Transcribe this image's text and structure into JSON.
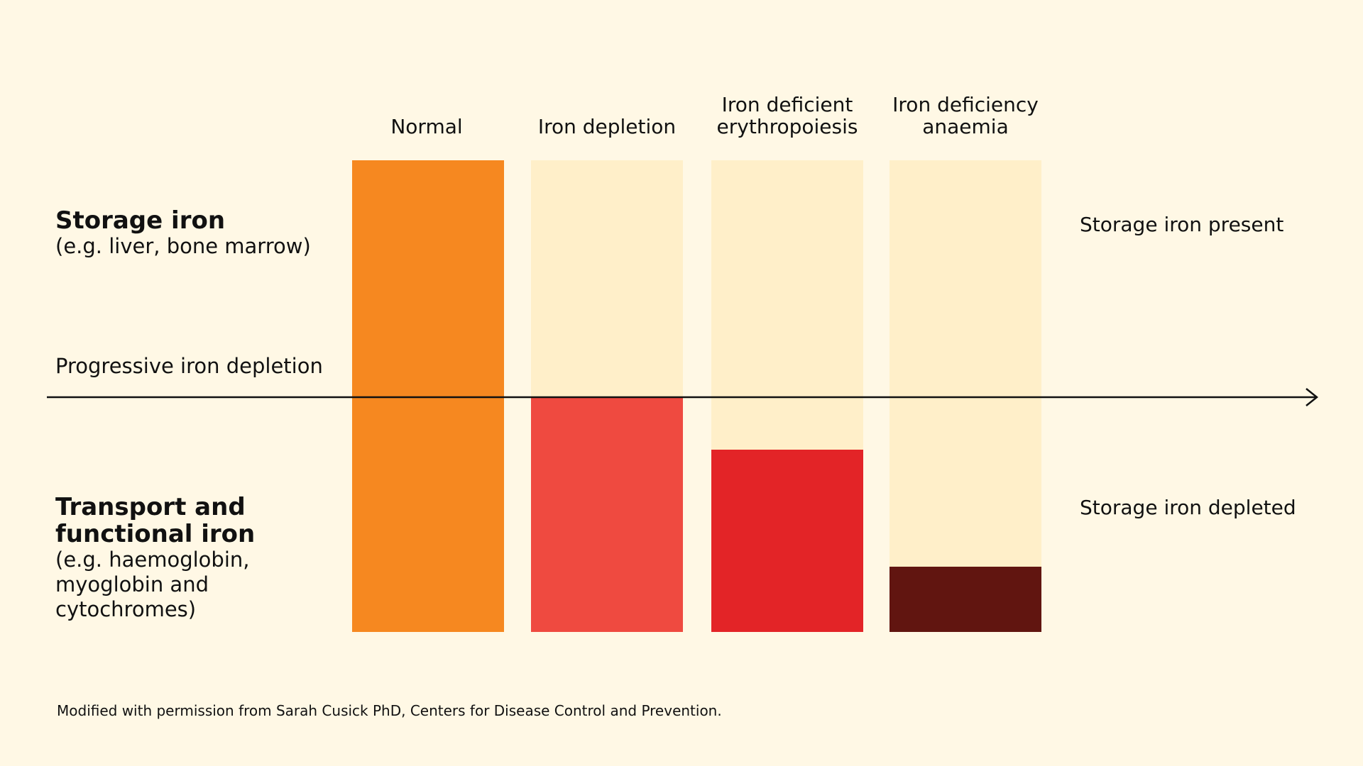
{
  "colors": {
    "background": "#FFF8E5",
    "storage_absent": "#FFEFC9",
    "normal": "#F68820",
    "iron_depletion": "#EF4A40",
    "iron_deficient_erythropoiesis": "#E32427",
    "iron_deficiency_anaemia": "#611510",
    "arrow": "#111111"
  },
  "columns": [
    {
      "label": "Normal",
      "functional_fraction": 1.0,
      "color_key": "normal"
    },
    {
      "label": "Iron depletion",
      "functional_fraction": 0.5,
      "color_key": "iron_depletion"
    },
    {
      "label": "Iron deficient erythropoiesis",
      "functional_fraction": 0.387,
      "color_key": "iron_deficient_erythropoiesis"
    },
    {
      "label": "Iron deficiency anaemia",
      "functional_fraction": 0.138,
      "color_key": "iron_deficiency_anaemia"
    }
  ],
  "left_labels": {
    "storage_title": "Storage iron",
    "storage_sub": "(e.g. liver, bone marrow)",
    "arrow_label": "Progressive iron depletion",
    "transport_title": "Transport and functional iron",
    "transport_sub": "(e.g. haemoglobin, myoglobin and cytochromes)"
  },
  "right_labels": {
    "present": "Storage iron present",
    "depleted": "Storage iron depleted"
  },
  "footer": "Modified with permission from Sarah Cusick PhD, Centers for Disease Control and Prevention."
}
